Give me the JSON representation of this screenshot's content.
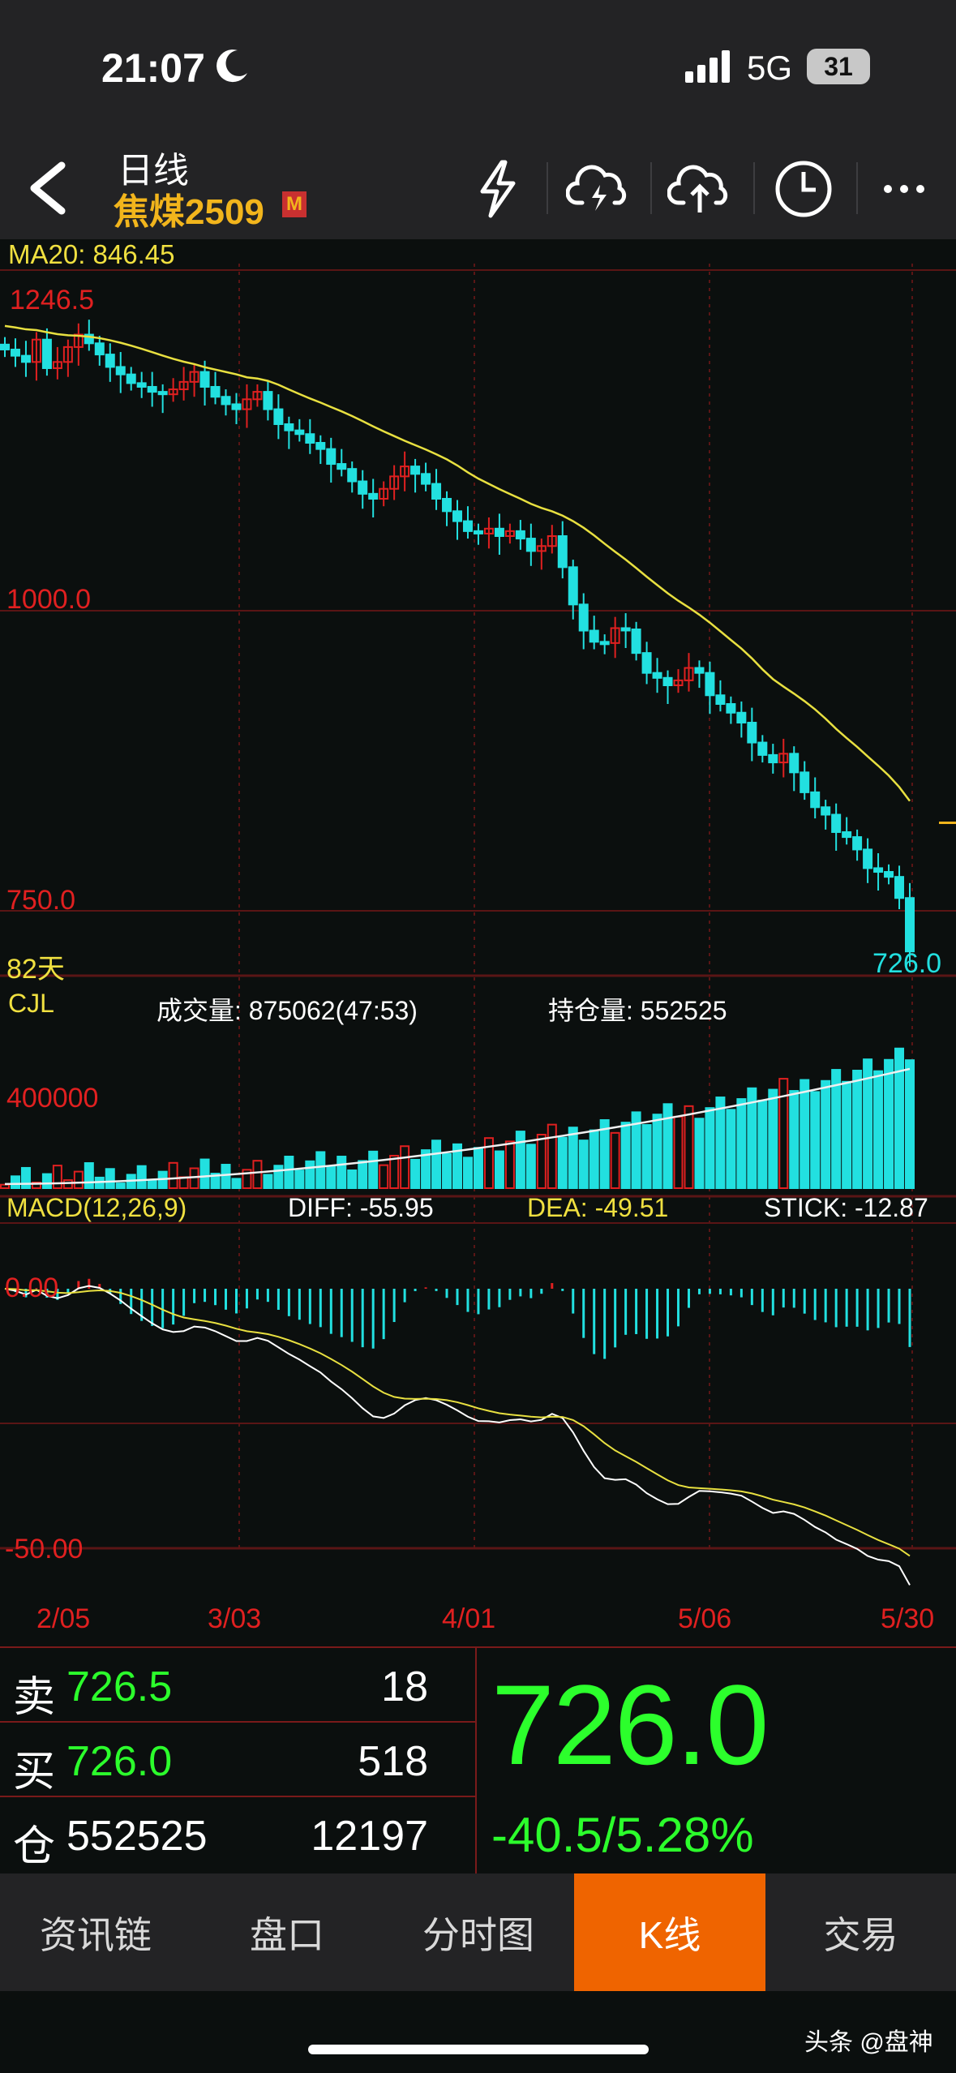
{
  "status": {
    "time": "21:07",
    "network": "5G",
    "battery": "31"
  },
  "header": {
    "title": "日线",
    "symbol": "焦煤2509",
    "symbol_badge": "M"
  },
  "chart": {
    "ma_label": "MA20: 846.45",
    "price_high": "1246.5",
    "price_mid": "1000.0",
    "price_low": "750.0",
    "days": "82天",
    "last_price": "726.0",
    "cjl_label": "CJL",
    "volume_label": "成交量: 875062(47:53)",
    "oi_label": "持仓量: 552525",
    "vol_tick": "400000",
    "macd_label": "MACD(12,26,9)",
    "diff_label": "DIFF: -55.95",
    "dea_label": "DEA: -49.51",
    "stick_label": "STICK: -12.87",
    "macd_zero": "0.00",
    "macd_low": "-50.00",
    "dates": [
      "2/05",
      "3/03",
      "4/01",
      "5/06",
      "5/30"
    ]
  },
  "chart_data": {
    "type": "candlestick",
    "symbol": "焦煤2509",
    "ma20": 846.45,
    "y_ticks": [
      1246.5,
      1000.0,
      750.0
    ],
    "last": 726.0,
    "closes": [
      1210,
      1205,
      1200,
      1218,
      1195,
      1200,
      1212,
      1222,
      1215,
      1206,
      1196,
      1190,
      1183,
      1180,
      1176,
      1174,
      1178,
      1184,
      1192,
      1180,
      1172,
      1166,
      1162,
      1170,
      1176,
      1162,
      1150,
      1145,
      1142,
      1135,
      1130,
      1118,
      1114,
      1104,
      1094,
      1090,
      1098,
      1108,
      1116,
      1110,
      1102,
      1090,
      1080,
      1072,
      1064,
      1062,
      1066,
      1060,
      1064,
      1058,
      1048,
      1052,
      1060,
      1035,
      1005,
      984,
      975,
      974,
      986,
      985,
      966,
      950,
      946,
      940,
      944,
      954,
      950,
      932,
      925,
      918,
      910,
      894,
      884,
      878,
      885,
      870,
      854,
      842,
      836,
      822,
      818,
      808,
      793,
      790,
      786,
      769,
      726
    ],
    "volume_tick": 400000,
    "macd": {
      "params": "12,26,9",
      "diff": -55.95,
      "dea": -49.51,
      "stick": -12.87,
      "ticks": [
        0.0,
        -50.0
      ]
    },
    "x_dates": [
      "2/05",
      "3/03",
      "4/01",
      "5/06",
      "5/30"
    ]
  },
  "quote": {
    "sell_label": "卖",
    "sell_price": "726.5",
    "sell_qty": "18",
    "buy_label": "买",
    "buy_price": "726.0",
    "buy_qty": "518",
    "oi_label": "仓",
    "oi_value": "552525",
    "oi_change": "12197",
    "last": "726.0",
    "change": "-40.5/5.28%"
  },
  "nav": {
    "tabs": [
      "资讯链",
      "盘口",
      "分时图",
      "K线",
      "交易"
    ],
    "active": "K线"
  },
  "footer": {
    "watermark": "头条 @盘神"
  },
  "colors": {
    "up": "#e02020",
    "down": "#22e0e0",
    "green": "#2cff2c",
    "ma": "#e8e040",
    "grid": "#5a1515",
    "active_tab": "#ef6400",
    "yellow_label": "#f0e040"
  }
}
